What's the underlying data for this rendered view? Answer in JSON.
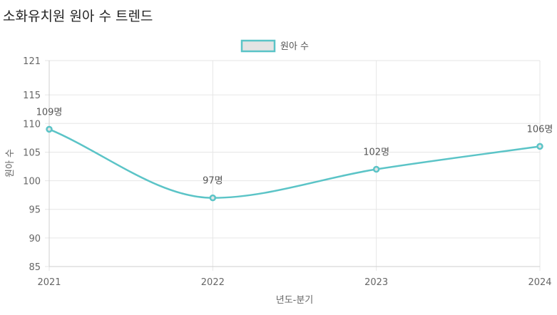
{
  "title": "소화유치원 원아 수 트렌드",
  "chart_data": {
    "type": "line",
    "title": "소화유치원 원아 수 트렌드",
    "categories": [
      "2021",
      "2022",
      "2023",
      "2024"
    ],
    "series": [
      {
        "name": "원아 수",
        "values": [
          109,
          97,
          102,
          106
        ],
        "labels": [
          "109명",
          "97명",
          "102명",
          "106명"
        ],
        "color": "#5bc4c7",
        "fill": "#e4e4e4"
      }
    ],
    "xlabel": "년도-분기",
    "ylabel": "원아 수",
    "ylim": [
      85,
      121
    ],
    "yticks": [
      85,
      90,
      95,
      100,
      105,
      110,
      115,
      121
    ],
    "grid": true,
    "legend": "top-center"
  }
}
